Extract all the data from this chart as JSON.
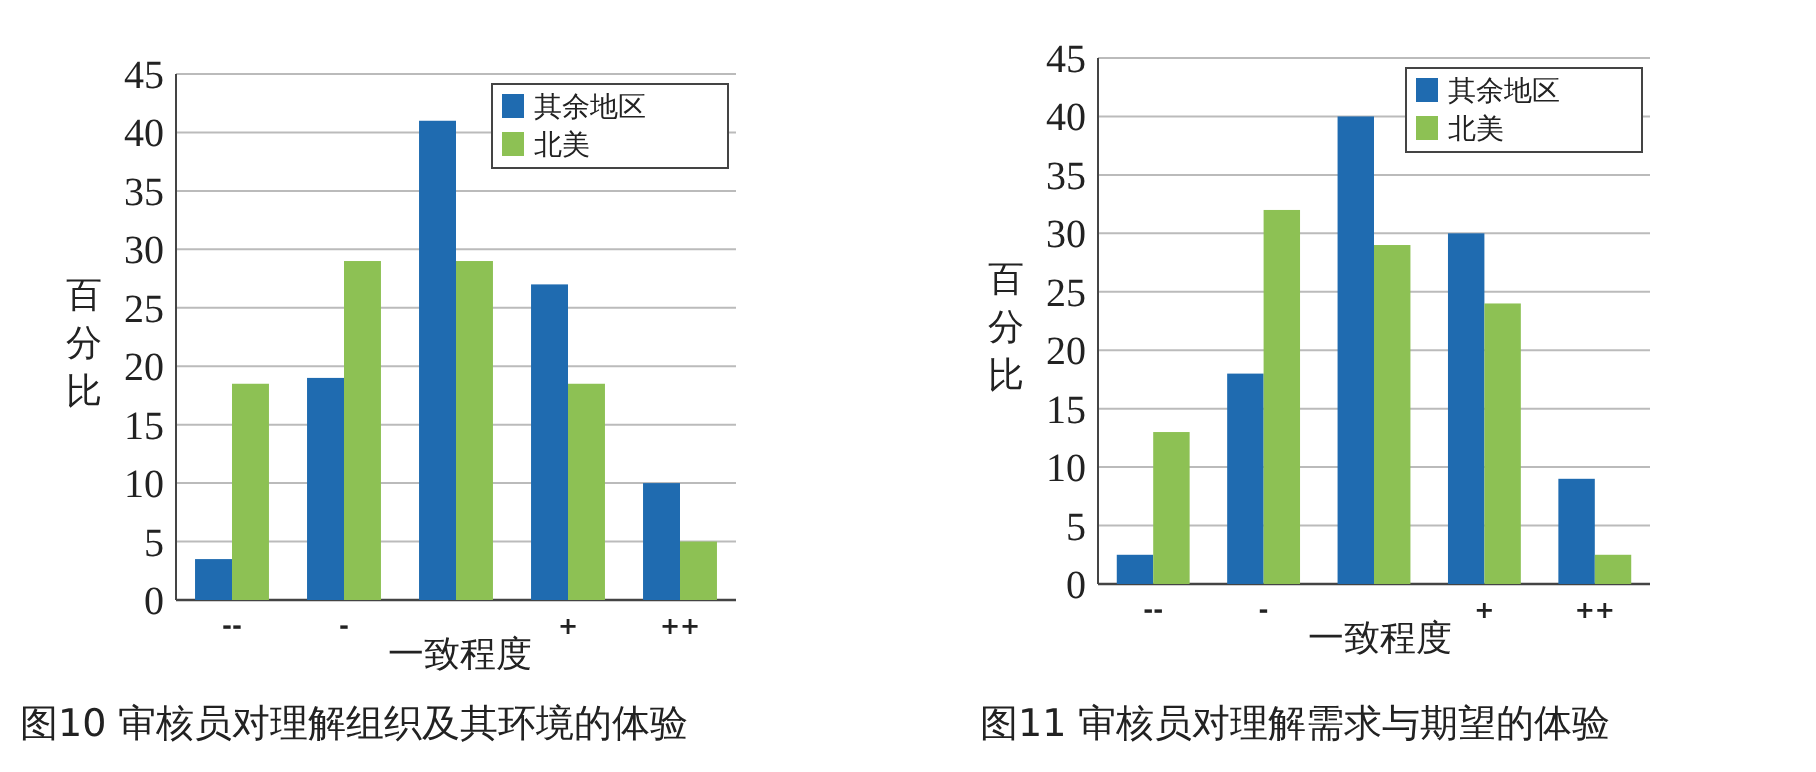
{
  "chart_data": [
    {
      "type": "bar",
      "annotations": [
        "图10 审核员对理解组织及其环境的体验"
      ],
      "xlabel": "一致程度",
      "ylabel": "百分比",
      "categories": [
        "--",
        "-",
        null,
        "+",
        "++"
      ],
      "ylim": [
        0,
        45
      ],
      "yticks": [
        0,
        5,
        10,
        15,
        20,
        25,
        30,
        35,
        40,
        45
      ],
      "grid": "y",
      "legend": "top right",
      "series": [
        {
          "name": "其余地区",
          "color": "#1f6bb0",
          "values": [
            3.5,
            19,
            41,
            27,
            10
          ]
        },
        {
          "name": "北美",
          "color": "#8dc154",
          "values": [
            18.5,
            29,
            29,
            18.5,
            5
          ]
        }
      ]
    },
    {
      "type": "bar",
      "annotations": [
        "图11 审核员对理解需求与期望的体验"
      ],
      "xlabel": "一致程度",
      "ylabel": "百分比",
      "categories": [
        "--",
        "-",
        null,
        "+",
        "++"
      ],
      "ylim": [
        0,
        45
      ],
      "yticks": [
        0,
        5,
        10,
        15,
        20,
        25,
        30,
        35,
        40,
        45
      ],
      "grid": "y",
      "legend": "top right",
      "series": [
        {
          "name": "其余地区",
          "color": "#1f6bb0",
          "values": [
            2.5,
            18,
            40,
            30,
            9
          ]
        },
        {
          "name": "北美",
          "color": "#8dc154",
          "values": [
            13,
            32,
            29,
            24,
            2.5
          ]
        }
      ]
    }
  ]
}
